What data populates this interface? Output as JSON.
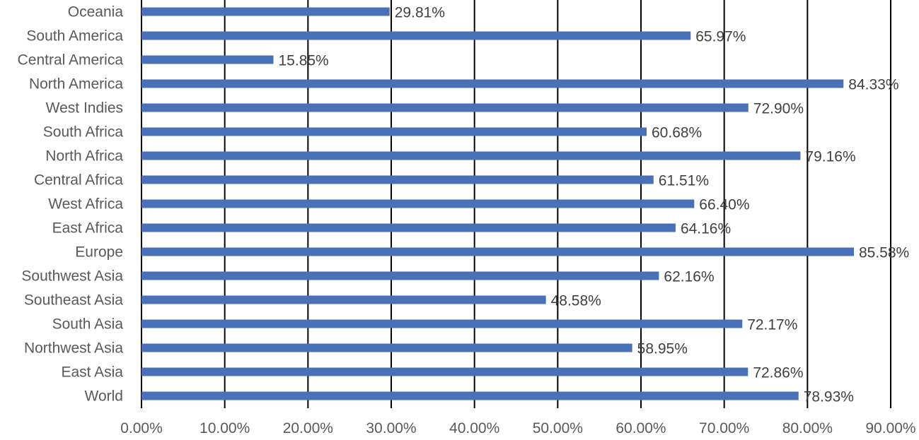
{
  "chart_data": {
    "type": "bar",
    "orientation": "horizontal",
    "categories": [
      "Oceania",
      "South America",
      "Central America",
      "North America",
      "West Indies",
      "South Africa",
      "North Africa",
      "Central Africa",
      "West Africa",
      "East Africa",
      "Europe",
      "Southwest Asia",
      "Southeast Asia",
      "South Asia",
      "Northwest Asia",
      "East Asia",
      "World"
    ],
    "values": [
      29.81,
      65.97,
      15.85,
      84.33,
      72.9,
      60.68,
      79.16,
      61.51,
      66.4,
      64.16,
      85.58,
      62.16,
      48.58,
      72.17,
      58.95,
      72.86,
      78.93
    ],
    "data_labels": [
      "29.81%",
      "65.97%",
      "15.85%",
      "84.33%",
      "72.90%",
      "60.68%",
      "79.16%",
      "61.51%",
      "66.40%",
      "64.16%",
      "85.58%",
      "62.16%",
      "48.58%",
      "72.17%",
      "58.95%",
      "72.86%",
      "78.93%"
    ],
    "x_ticks": [
      0,
      10,
      20,
      30,
      40,
      50,
      60,
      70,
      80,
      90
    ],
    "x_tick_labels": [
      "0.00%",
      "10.00%",
      "20.00%",
      "30.00%",
      "40.00%",
      "50.00%",
      "60.00%",
      "70.00%",
      "80.00%",
      "90.00%"
    ],
    "xlim": [
      0,
      90
    ],
    "title": "",
    "xlabel": "",
    "ylabel": "",
    "grid": "vertical",
    "legend": "none",
    "bar_color": "#4a70b7"
  }
}
